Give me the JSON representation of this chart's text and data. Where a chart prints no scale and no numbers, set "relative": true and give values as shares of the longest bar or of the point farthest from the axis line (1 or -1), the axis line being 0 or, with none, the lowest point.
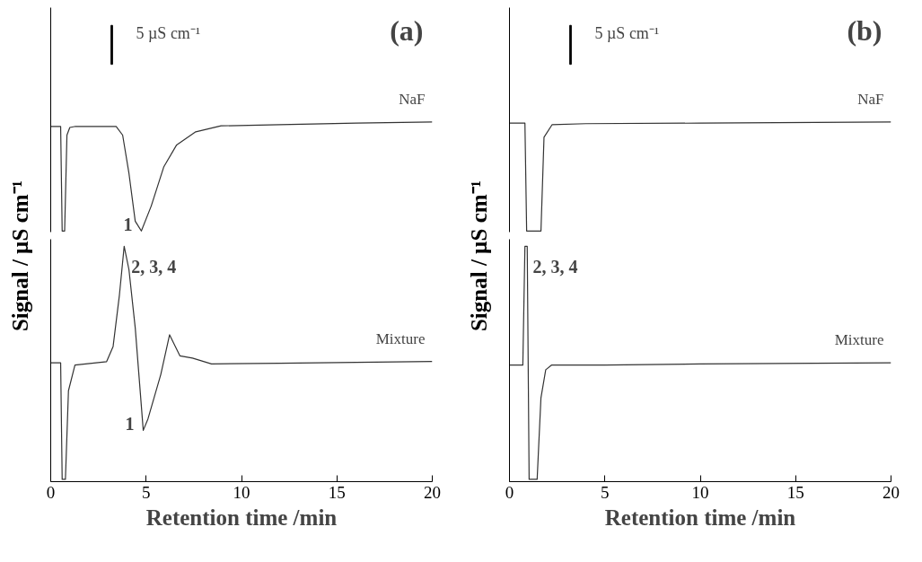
{
  "chart_data": [
    {
      "type": "line",
      "title": "(a)",
      "relative": true,
      "xlim": [
        0,
        20
      ],
      "tick_labels": false,
      "grid": false,
      "annotations": [
        "5 µS cm⁻¹",
        {
          "text": "1",
          "x": 4.75,
          "y": 0
        }
      ],
      "series": [
        {
          "name": "NaF",
          "color": "#333333",
          "x": [
            0,
            0.52,
            0.6,
            0.73,
            0.85,
            1.0,
            1.3,
            3.43,
            3.77,
            4.1,
            4.43,
            4.75,
            5.27,
            5.93,
            6.6,
            7.6,
            8.93,
            12,
            16,
            20
          ],
          "values": [
            0.96,
            0.96,
            0,
            0,
            0.88,
            0.95,
            0.96,
            0.96,
            0.88,
            0.53,
            0.09,
            0,
            0.23,
            0.59,
            0.79,
            0.91,
            0.965,
            0.975,
            0.99,
            1.0
          ]
        }
      ]
    },
    {
      "type": "line",
      "relative": true,
      "xlim": [
        0,
        20
      ],
      "xticks": [
        0,
        5,
        10,
        15,
        20
      ],
      "tick_labels": "x",
      "grid": false,
      "xlabel": "Retention time /min",
      "ylabel": "Signal / µS cm⁻¹",
      "annotations": [
        {
          "text": "1",
          "x": 4.85,
          "y": 0.21
        },
        {
          "text": "2, 3, 4",
          "x": 3.85,
          "y": 1.0
        }
      ],
      "series": [
        {
          "name": "Mixture",
          "color": "#333333",
          "x": [
            0,
            0.52,
            0.6,
            0.77,
            0.93,
            1.27,
            2.93,
            3.27,
            3.6,
            3.85,
            4.1,
            4.43,
            4.85,
            5.1,
            5.77,
            6.23,
            6.77,
            7.43,
            8.43,
            12,
            20
          ],
          "values": [
            0.5,
            0.5,
            0,
            0,
            0.38,
            0.49,
            0.505,
            0.57,
            0.79,
            1.0,
            0.9,
            0.65,
            0.21,
            0.26,
            0.45,
            0.62,
            0.53,
            0.52,
            0.495,
            0.498,
            0.506
          ]
        }
      ]
    },
    {
      "type": "line",
      "title": "(b)",
      "relative": true,
      "xlim": [
        0,
        20
      ],
      "tick_labels": false,
      "grid": false,
      "annotations": [
        "5 µS cm⁻¹"
      ],
      "series": [
        {
          "name": "NaF",
          "color": "#333333",
          "x": [
            0,
            0.81,
            0.9,
            1.65,
            1.81,
            2.23,
            4,
            10,
            20
          ],
          "values": [
            0.99,
            0.99,
            0,
            0,
            0.86,
            0.975,
            0.985,
            0.99,
            1.0
          ]
        }
      ]
    },
    {
      "type": "line",
      "relative": true,
      "xlim": [
        0,
        20
      ],
      "xticks": [
        0,
        5,
        10,
        15,
        20
      ],
      "tick_labels": "x",
      "grid": false,
      "xlabel": "Retention time /min",
      "ylabel": "Signal / µS cm⁻¹",
      "annotations": [
        {
          "text": "2, 3, 4",
          "x": 0.85,
          "y": 1.0
        }
      ],
      "series": [
        {
          "name": "Mixture",
          "color": "#333333",
          "x": [
            0,
            0.7,
            0.81,
            0.93,
            1.03,
            1.45,
            1.65,
            1.9,
            2.2,
            5,
            10,
            20
          ],
          "values": [
            0.49,
            0.49,
            1.0,
            1.0,
            0,
            0,
            0.35,
            0.47,
            0.49,
            0.49,
            0.495,
            0.5
          ]
        }
      ]
    }
  ]
}
